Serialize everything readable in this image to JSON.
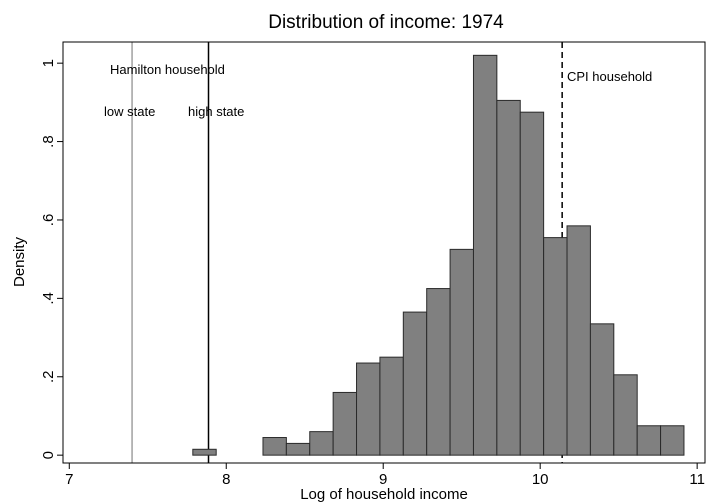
{
  "chart_data": {
    "type": "histogram",
    "title": "Distribution of income: 1974",
    "x_label": "Log of household income",
    "y_label": "Density",
    "bins": [
      7.787,
      7.936,
      8.085,
      8.234,
      8.383,
      8.532,
      8.681,
      8.83,
      8.979,
      9.128,
      9.277,
      9.426,
      9.575,
      9.724,
      9.873,
      10.022,
      10.171,
      10.32,
      10.469,
      10.618,
      10.767,
      10.916
    ],
    "values": [
      0.015,
      0,
      0,
      0.045,
      0.03,
      0.06,
      0.16,
      0.235,
      0.25,
      0.365,
      0.425,
      0.525,
      1.02,
      0.905,
      0.875,
      0.555,
      0.585,
      0.335,
      0.205,
      0.075,
      0.075
    ],
    "color": "#808080",
    "xlim": [
      6.96,
      11.05
    ],
    "ylim": [
      -0.02,
      1.054
    ],
    "xticks": [
      7,
      8,
      9,
      10,
      11
    ],
    "yticks": [
      0,
      {
        "value": 0.2,
        "label": ".2"
      },
      {
        "value": 0.4,
        "label": ".4"
      },
      {
        "value": 0.6,
        "label": ".6"
      },
      {
        "value": 0.8,
        "label": ".8"
      },
      1
    ],
    "reference_lines": [
      {
        "x": 7.4,
        "color": "#a0a0a0",
        "dashed": false
      },
      {
        "x": 7.887,
        "color": "#000000",
        "dashed": false
      },
      {
        "x": 10.14,
        "color": "#000000",
        "dashed": true
      }
    ],
    "annotations": [
      "Hamilton household",
      "low state",
      "high state",
      "CPI household"
    ]
  }
}
